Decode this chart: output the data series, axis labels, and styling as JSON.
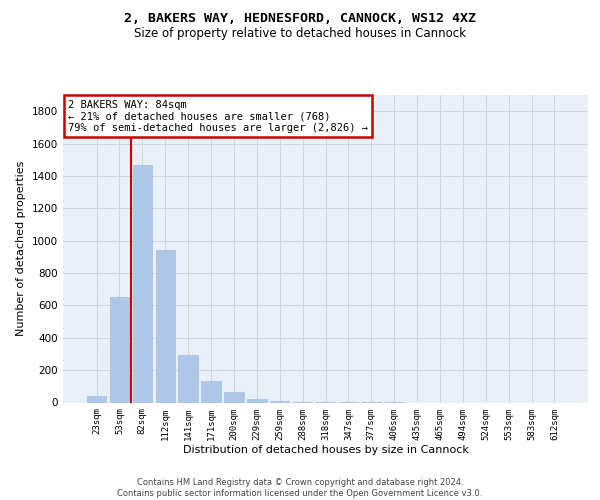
{
  "title_line1": "2, BAKERS WAY, HEDNESFORD, CANNOCK, WS12 4XZ",
  "title_line2": "Size of property relative to detached houses in Cannock",
  "xlabel": "Distribution of detached houses by size in Cannock",
  "ylabel": "Number of detached properties",
  "categories": [
    "23sqm",
    "53sqm",
    "82sqm",
    "112sqm",
    "141sqm",
    "171sqm",
    "200sqm",
    "229sqm",
    "259sqm",
    "288sqm",
    "318sqm",
    "347sqm",
    "377sqm",
    "406sqm",
    "435sqm",
    "465sqm",
    "494sqm",
    "524sqm",
    "553sqm",
    "583sqm",
    "612sqm"
  ],
  "values": [
    40,
    650,
    1470,
    940,
    295,
    130,
    62,
    22,
    12,
    5,
    3,
    2,
    1,
    1,
    0,
    0,
    0,
    0,
    0,
    0,
    0
  ],
  "bar_color": "#aec6e8",
  "bar_edge_color": "#9ab8dc",
  "vline_color": "#cc0000",
  "vline_x": 1.5,
  "annotation_text": "2 BAKERS WAY: 84sqm\n← 21% of detached houses are smaller (768)\n79% of semi-detached houses are larger (2,826) →",
  "annotation_box_edgecolor": "#cc0000",
  "annotation_facecolor": "#ffffff",
  "ylim": [
    0,
    1900
  ],
  "yticks": [
    0,
    200,
    400,
    600,
    800,
    1000,
    1200,
    1400,
    1600,
    1800
  ],
  "grid_color": "#ccd5e5",
  "background_color": "#eaf0f8",
  "footer_line1": "Contains HM Land Registry data © Crown copyright and database right 2024.",
  "footer_line2": "Contains public sector information licensed under the Open Government Licence v3.0.",
  "title1_fontsize": 9.5,
  "title2_fontsize": 8.5,
  "ylabel_fontsize": 8,
  "xlabel_fontsize": 8,
  "annotation_fontsize": 7.5,
  "ytick_fontsize": 7.5,
  "xtick_fontsize": 6.5,
  "footer_fontsize": 6
}
